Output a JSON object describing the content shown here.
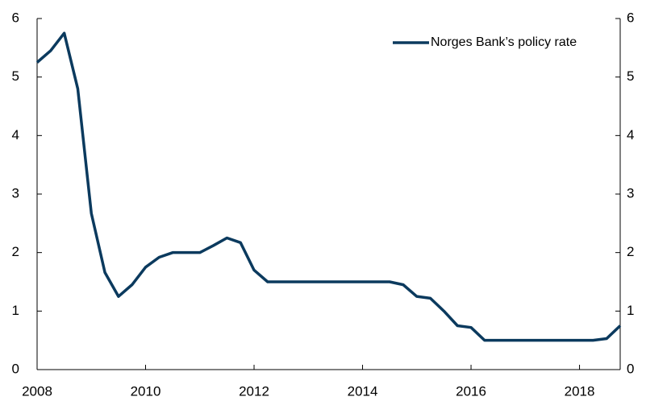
{
  "chart_data": {
    "type": "line",
    "x": [
      2008,
      2008.25,
      2008.5,
      2008.75,
      2009,
      2009.25,
      2009.5,
      2009.75,
      2010,
      2010.25,
      2010.5,
      2010.75,
      2011,
      2011.25,
      2011.5,
      2011.75,
      2012,
      2012.25,
      2012.5,
      2012.75,
      2013,
      2013.25,
      2013.5,
      2013.75,
      2014,
      2014.25,
      2014.5,
      2014.75,
      2015,
      2015.25,
      2015.5,
      2015.75,
      2016,
      2016.25,
      2016.5,
      2016.75,
      2017,
      2017.25,
      2017.5,
      2017.75,
      2018,
      2018.25,
      2018.5,
      2018.75
    ],
    "series": [
      {
        "name": "Norges Bank’s policy rate",
        "color": "#0b3a5e",
        "values": [
          5.25,
          5.45,
          5.75,
          4.8,
          2.67,
          1.66,
          1.25,
          1.45,
          1.75,
          1.92,
          2.0,
          2.0,
          2.0,
          2.12,
          2.25,
          2.17,
          1.7,
          1.5,
          1.5,
          1.5,
          1.5,
          1.5,
          1.5,
          1.5,
          1.5,
          1.5,
          1.5,
          1.45,
          1.25,
          1.22,
          1.0,
          0.75,
          0.72,
          0.5,
          0.5,
          0.5,
          0.5,
          0.5,
          0.5,
          0.5,
          0.5,
          0.5,
          0.53,
          0.75
        ]
      }
    ],
    "xlim": [
      2008,
      2018.75
    ],
    "xticks": [
      2008,
      2010,
      2012,
      2014,
      2016,
      2018
    ],
    "ylim": [
      0,
      6
    ],
    "yticks": [
      0,
      1,
      2,
      3,
      4,
      5,
      6
    ],
    "y2lim": [
      0,
      6
    ],
    "y2ticks": [
      0,
      1,
      2,
      3,
      4,
      5,
      6
    ],
    "legend": "upper right",
    "grid": false
  }
}
